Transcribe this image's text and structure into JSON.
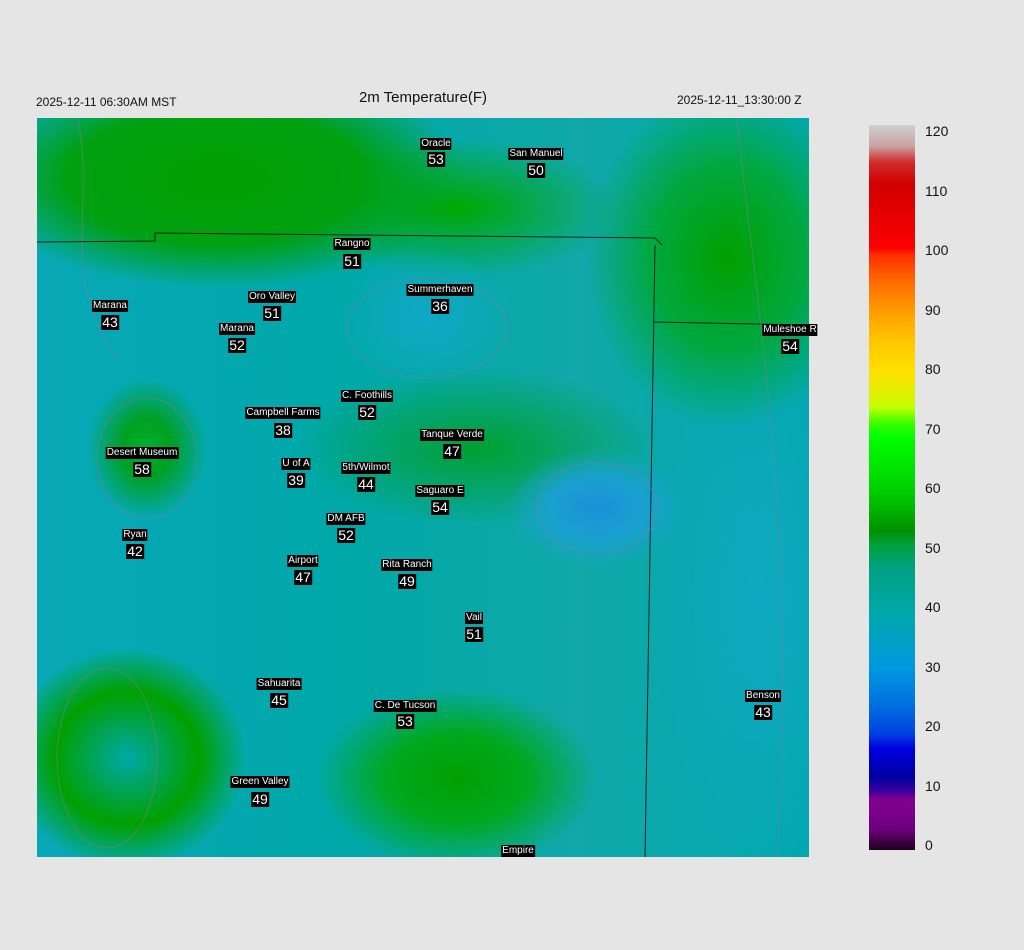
{
  "header": {
    "local_time": "2025-12-11 06:30AM MST",
    "title": "2m Temperature(F)",
    "valid_time": "2025-12-11_13:30:00 Z"
  },
  "stations": [
    {
      "name": "Oracle",
      "value": "53"
    },
    {
      "name": "San Manuel",
      "value": "50"
    },
    {
      "name": "Rangno",
      "value": "51"
    },
    {
      "name": "Oro Valley",
      "value": "51"
    },
    {
      "name": "Summerhaven",
      "value": "36"
    },
    {
      "name": "Marana",
      "value": "43"
    },
    {
      "name": "Marana",
      "value": "52"
    },
    {
      "name": "Muleshoe R",
      "value": "54"
    },
    {
      "name": "C. Foothills",
      "value": "52"
    },
    {
      "name": "Campbell Farms",
      "value": "38"
    },
    {
      "name": "Tanque Verde",
      "value": "47"
    },
    {
      "name": "Desert Museum",
      "value": "58"
    },
    {
      "name": "U of A",
      "value": "39"
    },
    {
      "name": "5th/Wilmot",
      "value": "44"
    },
    {
      "name": "Saguaro E",
      "value": "54"
    },
    {
      "name": "DM AFB",
      "value": "52"
    },
    {
      "name": "Ryan",
      "value": "42"
    },
    {
      "name": "Airport",
      "value": "47"
    },
    {
      "name": "Rita Ranch",
      "value": "49"
    },
    {
      "name": "Vail",
      "value": "51"
    },
    {
      "name": "Sahuarita",
      "value": "45"
    },
    {
      "name": "Benson",
      "value": "43"
    },
    {
      "name": "C. De Tucson",
      "value": "53"
    },
    {
      "name": "Green Valley",
      "value": "49"
    },
    {
      "name": "Empire",
      "value": null
    }
  ],
  "colorbar": {
    "ticks": [
      "120",
      "110",
      "100",
      "90",
      "80",
      "70",
      "60",
      "50",
      "40",
      "30",
      "20",
      "10",
      "0"
    ],
    "min": 0,
    "max": 120,
    "units": "F"
  }
}
